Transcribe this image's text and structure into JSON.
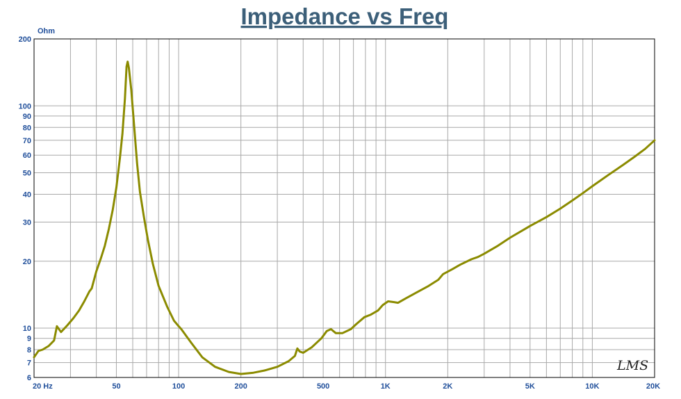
{
  "chart_data": {
    "type": "line",
    "title": "Impedance vs Freq",
    "ylabel": "Ohm",
    "xlabel": "",
    "x_scale": "log",
    "y_scale": "log",
    "xlim": [
      20,
      20000
    ],
    "ylim": [
      6,
      200
    ],
    "grid": true,
    "x_tick_labels": [
      {
        "value": 20,
        "label": "20  Hz"
      },
      {
        "value": 50,
        "label": "50"
      },
      {
        "value": 100,
        "label": "100"
      },
      {
        "value": 200,
        "label": "200"
      },
      {
        "value": 500,
        "label": "500"
      },
      {
        "value": 1000,
        "label": "1K"
      },
      {
        "value": 2000,
        "label": "2K"
      },
      {
        "value": 5000,
        "label": "5K"
      },
      {
        "value": 10000,
        "label": "10K"
      },
      {
        "value": 20000,
        "label": "20K"
      }
    ],
    "y_tick_labels": [
      {
        "value": 200,
        "label": "200"
      },
      {
        "value": 100,
        "label": "100"
      },
      {
        "value": 90,
        "label": "90"
      },
      {
        "value": 80,
        "label": "80"
      },
      {
        "value": 70,
        "label": "70"
      },
      {
        "value": 60,
        "label": "60"
      },
      {
        "value": 50,
        "label": "50"
      },
      {
        "value": 40,
        "label": "40"
      },
      {
        "value": 30,
        "label": "30"
      },
      {
        "value": 20,
        "label": "20"
      },
      {
        "value": 10,
        "label": "10"
      },
      {
        "value": 9,
        "label": "9"
      },
      {
        "value": 8,
        "label": "8"
      },
      {
        "value": 7,
        "label": "7"
      },
      {
        "value": 6,
        "label": "6"
      }
    ],
    "series": [
      {
        "color": "#8b8b00",
        "points": [
          [
            20,
            7.4
          ],
          [
            21,
            7.9
          ],
          [
            22,
            8.0
          ],
          [
            23.5,
            8.3
          ],
          [
            25,
            8.8
          ],
          [
            25.8,
            10.2
          ],
          [
            27,
            9.6
          ],
          [
            29,
            10.3
          ],
          [
            31,
            11.1
          ],
          [
            33,
            12.0
          ],
          [
            35,
            13.2
          ],
          [
            37,
            14.6
          ],
          [
            38,
            15.1
          ],
          [
            40,
            18.0
          ],
          [
            42,
            20.5
          ],
          [
            44,
            23.5
          ],
          [
            46,
            28.0
          ],
          [
            48,
            34.0
          ],
          [
            50,
            43.0
          ],
          [
            52,
            58.0
          ],
          [
            53.5,
            75.0
          ],
          [
            55,
            108.0
          ],
          [
            56,
            150.0
          ],
          [
            56.7,
            158.0
          ],
          [
            57.5,
            148.0
          ],
          [
            59,
            118.0
          ],
          [
            61,
            80.0
          ],
          [
            63,
            55.0
          ],
          [
            65,
            41.0
          ],
          [
            68,
            31.5
          ],
          [
            71,
            25.0
          ],
          [
            75,
            19.5
          ],
          [
            80,
            15.5
          ],
          [
            88,
            12.5
          ],
          [
            95,
            10.8
          ],
          [
            100,
            10.2
          ],
          [
            103,
            9.9
          ],
          [
            115,
            8.6
          ],
          [
            130,
            7.4
          ],
          [
            150,
            6.7
          ],
          [
            175,
            6.35
          ],
          [
            200,
            6.22
          ],
          [
            230,
            6.3
          ],
          [
            260,
            6.45
          ],
          [
            300,
            6.7
          ],
          [
            340,
            7.1
          ],
          [
            365,
            7.5
          ],
          [
            375,
            8.1
          ],
          [
            385,
            7.85
          ],
          [
            400,
            7.75
          ],
          [
            440,
            8.2
          ],
          [
            490,
            9.0
          ],
          [
            520,
            9.7
          ],
          [
            545,
            9.9
          ],
          [
            575,
            9.5
          ],
          [
            620,
            9.5
          ],
          [
            680,
            9.9
          ],
          [
            720,
            10.4
          ],
          [
            790,
            11.2
          ],
          [
            850,
            11.5
          ],
          [
            920,
            12.0
          ],
          [
            970,
            12.7
          ],
          [
            1030,
            13.2
          ],
          [
            1100,
            13.1
          ],
          [
            1150,
            13.0
          ],
          [
            1250,
            13.6
          ],
          [
            1400,
            14.4
          ],
          [
            1600,
            15.4
          ],
          [
            1800,
            16.5
          ],
          [
            1900,
            17.5
          ],
          [
            2100,
            18.4
          ],
          [
            2300,
            19.3
          ],
          [
            2600,
            20.4
          ],
          [
            2800,
            20.9
          ],
          [
            3000,
            21.6
          ],
          [
            3500,
            23.5
          ],
          [
            4000,
            25.5
          ],
          [
            4500,
            27.2
          ],
          [
            5000,
            28.8
          ],
          [
            6000,
            31.6
          ],
          [
            7000,
            34.5
          ],
          [
            8000,
            37.5
          ],
          [
            9000,
            40.5
          ],
          [
            10000,
            43.5
          ],
          [
            12000,
            49.0
          ],
          [
            14000,
            54.0
          ],
          [
            16000,
            59.0
          ],
          [
            18000,
            64.0
          ],
          [
            20000,
            70.0
          ]
        ]
      }
    ]
  },
  "logo_text": "LMS"
}
